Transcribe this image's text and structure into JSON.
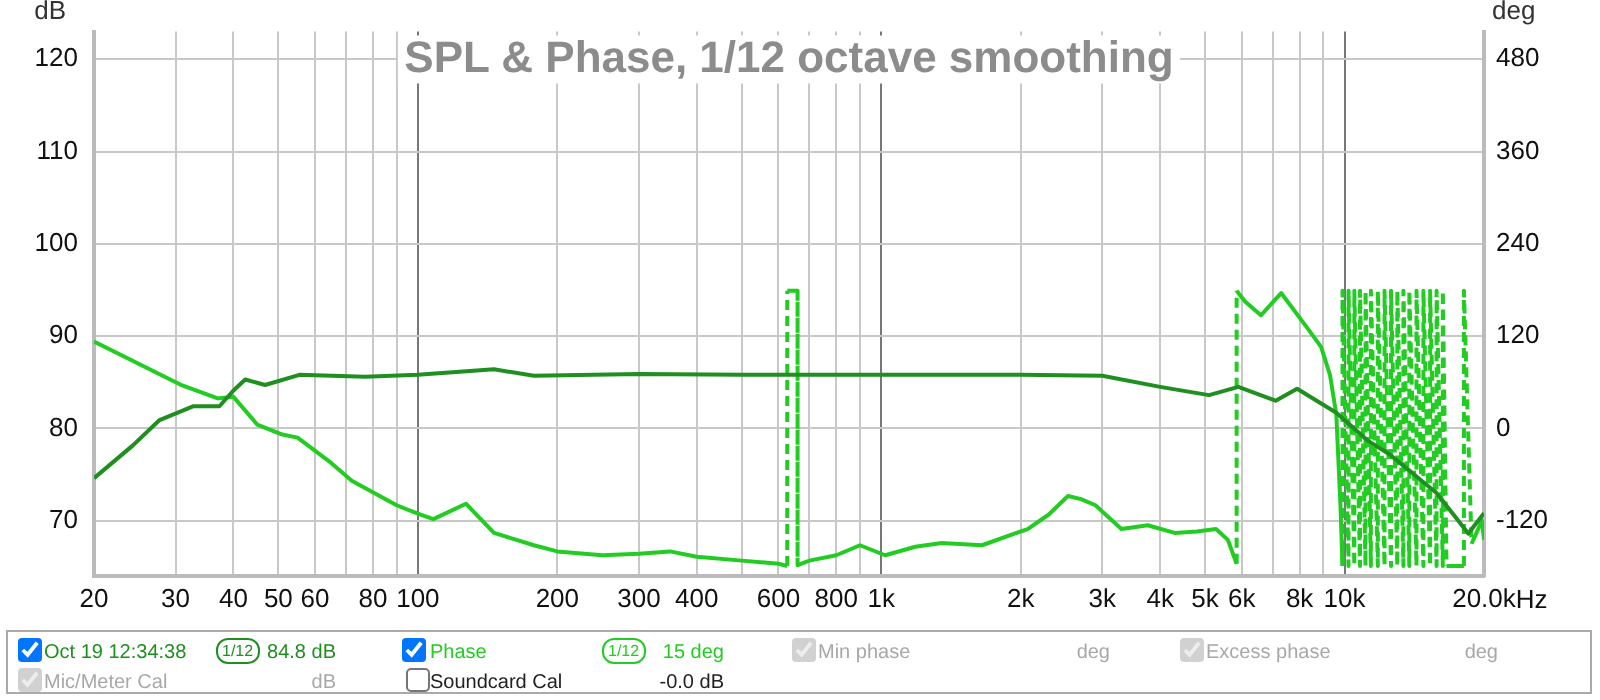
{
  "chart_data": {
    "type": "line",
    "title": "SPL & Phase, 1/12 octave smoothing",
    "ylabel": "dB",
    "y2label": "deg",
    "log": "x",
    "xlim": [
      20,
      20000
    ],
    "xticks": [
      20,
      30,
      40,
      50,
      60,
      {
        "value": 70,
        "label": null
      },
      80,
      {
        "value": 90,
        "label": null
      },
      100,
      200,
      300,
      400,
      {
        "value": 500,
        "label": null
      },
      600,
      {
        "value": 700,
        "label": null
      },
      800,
      {
        "value": 900,
        "label": null
      },
      {
        "value": 1000,
        "label": "1k"
      },
      {
        "value": 2000,
        "label": "2k"
      },
      {
        "value": 3000,
        "label": "3k"
      },
      {
        "value": 4000,
        "label": "4k"
      },
      {
        "value": 5000,
        "label": "5k"
      },
      {
        "value": 6000,
        "label": "6k"
      },
      {
        "value": 7000,
        "label": null
      },
      {
        "value": 8000,
        "label": "8k"
      },
      {
        "value": 9000,
        "label": null
      },
      {
        "value": 10000,
        "label": "10k"
      },
      {
        "value": 20000,
        "label": "20.0k"
      }
    ],
    "xlabel": "Hz",
    "ylim": [
      64,
      123
    ],
    "yticks": [
      70,
      80,
      90,
      100,
      110,
      120
    ],
    "y2lim": [
      -192,
      516
    ],
    "y2ticks": [
      -120,
      0,
      120,
      240,
      360,
      480
    ],
    "grid": true,
    "legend": "bottom",
    "marker": "none",
    "series": [
      {
        "name": "Oct 19 12:34:38",
        "color": "#1f8f1f",
        "x": [
          20,
          24.2,
          27.7,
          32.8,
          37.3,
          40,
          42.4,
          46.8,
          55.5,
          77,
          100,
          146,
          178,
          300,
          500,
          1000,
          2000,
          3000,
          4000,
          5100,
          5900,
          7100,
          7900,
          9600,
          11200,
          12500,
          15800,
          18500,
          20000
        ],
        "values": [
          74.6,
          78.1,
          80.9,
          82.4,
          82.4,
          84.1,
          85.3,
          84.7,
          85.8,
          85.6,
          85.8,
          86.4,
          85.7,
          85.9,
          85.8,
          85.8,
          85.8,
          85.7,
          84.5,
          83.6,
          84.5,
          83.0,
          84.3,
          81.7,
          78.7,
          77.2,
          73.0,
          68.6,
          70.8
        ]
      },
      {
        "name": "Phase",
        "color": "#22cc22",
        "axis": "y2",
        "x": [
          20,
          30.7,
          37,
          40,
          45,
          51,
          55,
          65,
          72,
          90,
          100,
          108,
          127,
          146,
          178,
          200,
          250,
          300,
          350,
          400,
          500,
          600,
          627,
          627,
          660,
          660,
          700,
          800,
          900,
          1020,
          1185,
          1350,
          1650,
          2070,
          2300,
          2530,
          2700,
          2900,
          3300,
          3760,
          4300,
          4800,
          5280,
          5600,
          5850,
          5850,
          6100,
          6600,
          7300,
          8300,
          8900,
          9300,
          9600,
          9800,
          9900,
          9900,
          10200,
          10200,
          10500,
          10500,
          10800,
          10800,
          11100,
          11100,
          11400,
          11400,
          11800,
          11800,
          12200,
          12200,
          12600,
          12600,
          13000,
          13000,
          13400,
          13400,
          13800,
          13800,
          14300,
          14300,
          14800,
          14800,
          15300,
          15300,
          15800,
          15800,
          16300,
          16300,
          16600,
          18100,
          18100,
          18800,
          19800,
          20000
        ],
        "values": [
          113,
          57,
          39,
          41,
          5,
          -8,
          -12,
          -45,
          -68,
          -100,
          -111,
          -118,
          -98,
          -136,
          -152,
          -160,
          -165,
          -163,
          -160,
          -167,
          -172,
          -176,
          -179,
          179,
          179,
          -178,
          -172,
          -165,
          -152,
          -165,
          -154,
          -149,
          -152,
          -131,
          -112,
          -88,
          -92,
          -100,
          -131,
          -126,
          -136,
          -134,
          -131,
          -145,
          -176,
          179,
          165,
          147,
          176,
          131,
          106,
          70,
          18,
          -100,
          -179,
          179,
          -179,
          179,
          -179,
          179,
          -179,
          179,
          -179,
          179,
          -179,
          179,
          -179,
          179,
          -179,
          179,
          -179,
          179,
          -179,
          179,
          -179,
          179,
          -179,
          179,
          -179,
          179,
          -179,
          179,
          -179,
          179,
          -179,
          179,
          -179,
          179,
          -179,
          -179,
          179,
          -150,
          -120,
          -145
        ]
      }
    ],
    "annotations": [
      "1/12",
      "84.8 dB",
      "1/12",
      "15 deg",
      "Min phase",
      "deg",
      "Excess phase",
      "deg",
      "Mic/Meter Cal",
      "dB",
      "Soundcard Cal",
      "-0.0 dB"
    ]
  }
}
